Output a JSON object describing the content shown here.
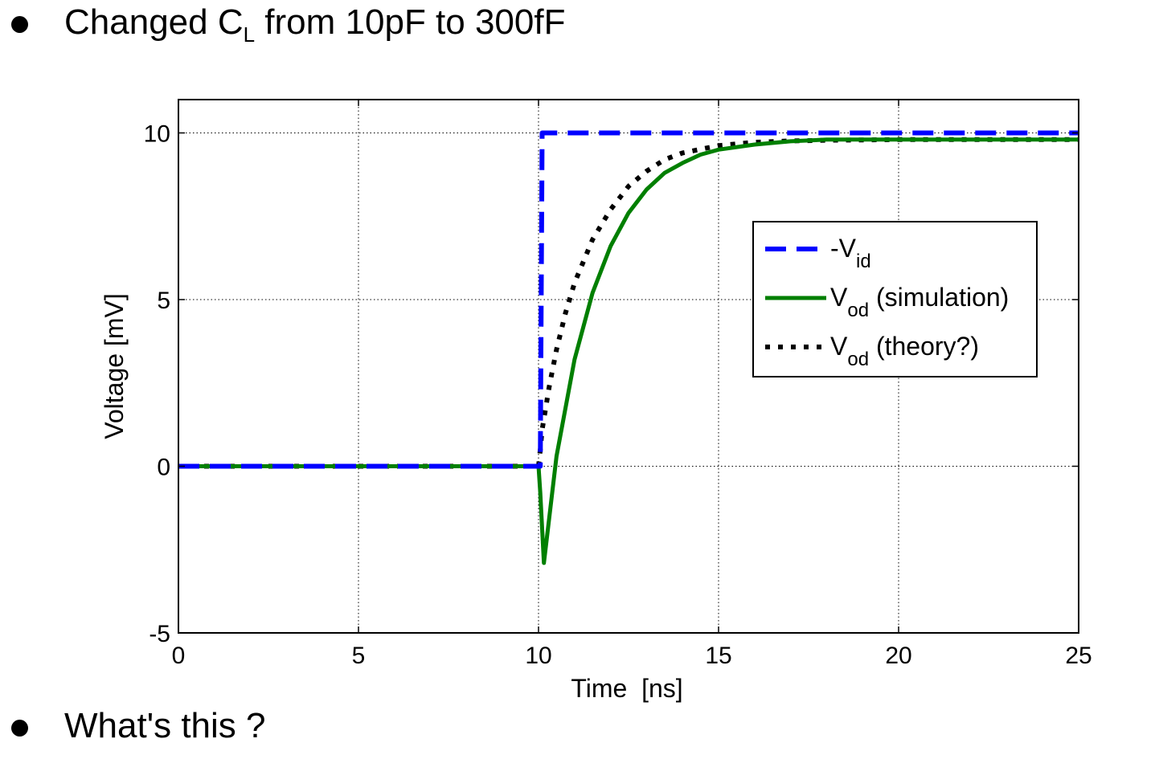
{
  "slide": {
    "bullets": [
      {
        "pre": "Changed C",
        "sub": "L",
        "post": " from 10pF to 300fF"
      },
      {
        "pre": "What's this ?",
        "sub": "",
        "post": ""
      }
    ]
  },
  "chart_data": {
    "type": "line",
    "title": "",
    "xlabel": "Time  [ns]",
    "ylabel": "Voltage [mV]",
    "xlim": [
      0,
      25
    ],
    "ylim": [
      -5,
      11
    ],
    "xticks": [
      0,
      5,
      10,
      15,
      20,
      25
    ],
    "yticks": [
      -5,
      0,
      5,
      10
    ],
    "grid": true,
    "legend_position": "right",
    "series": [
      {
        "name": "-V",
        "name_sub": "id",
        "color": "#0000ff",
        "style": "dashed",
        "x": [
          0,
          10,
          10.05,
          10.1,
          25
        ],
        "y": [
          0,
          0,
          0,
          10,
          10
        ]
      },
      {
        "name": "V",
        "name_sub": "od",
        "name_suffix": " (simulation)",
        "color": "#007f00",
        "style": "solid",
        "x": [
          0,
          10,
          10.05,
          10.15,
          10.5,
          11,
          11.5,
          12,
          12.5,
          13,
          13.5,
          14,
          14.5,
          15,
          16,
          17,
          18,
          19,
          20,
          21,
          22,
          23,
          24,
          25
        ],
        "y": [
          0,
          0,
          -0.8,
          -2.9,
          0.3,
          3.2,
          5.2,
          6.6,
          7.6,
          8.3,
          8.8,
          9.1,
          9.35,
          9.5,
          9.65,
          9.75,
          9.8,
          9.8,
          9.8,
          9.8,
          9.8,
          9.8,
          9.8,
          9.8
        ]
      },
      {
        "name": "V",
        "name_sub": "od",
        "name_suffix": " (theory?)",
        "color": "#000000",
        "style": "dotted",
        "x": [
          0,
          10,
          10.05,
          10.1,
          10.3,
          10.5,
          10.75,
          11,
          11.5,
          12,
          12.5,
          13,
          13.5,
          14,
          15,
          16,
          17,
          18,
          20,
          25
        ],
        "y": [
          0,
          0,
          0.5,
          1.1,
          2.4,
          3.5,
          4.6,
          5.5,
          6.8,
          7.7,
          8.4,
          8.85,
          9.2,
          9.4,
          9.62,
          9.72,
          9.76,
          9.78,
          9.8,
          9.8
        ]
      }
    ]
  }
}
